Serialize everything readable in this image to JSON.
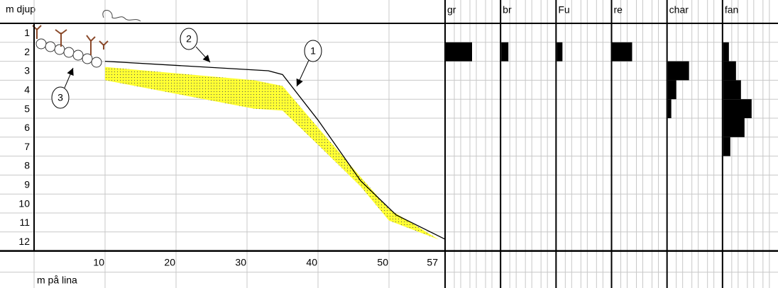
{
  "y_axis_title": "m djup",
  "x_axis_title": "m på lina",
  "depths": [
    1,
    2,
    3,
    4,
    5,
    6,
    7,
    8,
    9,
    10,
    11,
    12
  ],
  "xticks": [
    10,
    20,
    30,
    40,
    50,
    57
  ],
  "profile": {
    "m": [
      10,
      33,
      35,
      40,
      46,
      51,
      58
    ],
    "depth": [
      2.5,
      3.0,
      3.2,
      5.6,
      8.8,
      10.6,
      11.9
    ]
  },
  "sediment": {
    "m": [
      10,
      31,
      35,
      40,
      46,
      50,
      57
    ],
    "top_depth": [
      2.8,
      3.5,
      3.8,
      6.0,
      8.6,
      10.3,
      11.9
    ],
    "bottom_depth": [
      3.5,
      5.0,
      5.1,
      6.9,
      9.1,
      10.9,
      11.9
    ]
  },
  "callouts": [
    "1",
    "2",
    "3"
  ],
  "panels": [
    {
      "label": "gr",
      "values": [
        0,
        37,
        0,
        0,
        0,
        0,
        0,
        0,
        0,
        0,
        0,
        0
      ]
    },
    {
      "label": "br",
      "values": [
        0,
        10,
        0,
        0,
        0,
        0,
        0,
        0,
        0,
        0,
        0,
        0
      ]
    },
    {
      "label": "Fu",
      "values": [
        0,
        8,
        0,
        0,
        0,
        0,
        0,
        0,
        0,
        0,
        0,
        0
      ]
    },
    {
      "label": "re",
      "values": [
        0,
        28,
        0,
        0,
        0,
        0,
        0,
        0,
        0,
        0,
        0,
        0
      ]
    },
    {
      "label": "char",
      "values": [
        0,
        0,
        30,
        12,
        5,
        0,
        0,
        0,
        0,
        0,
        0,
        0
      ]
    },
    {
      "label": "fan",
      "values": [
        0,
        8,
        18,
        25,
        40,
        30,
        10,
        0,
        0,
        0,
        0,
        0
      ]
    }
  ]
}
